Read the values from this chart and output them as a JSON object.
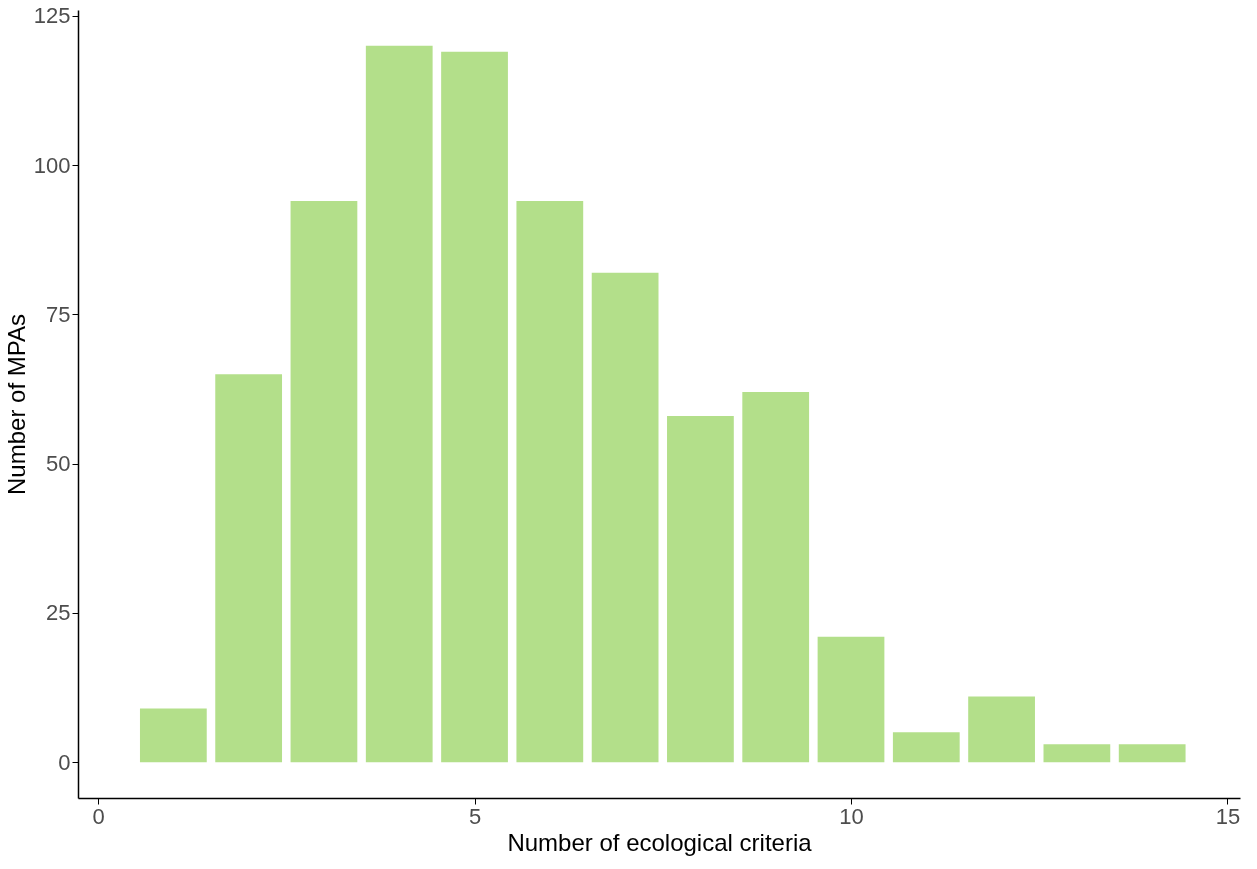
{
  "chart_data": {
    "type": "bar",
    "xlabel": "Number of ecological criteria",
    "ylabel": "Number of MPAs",
    "x": [
      1,
      2,
      3,
      4,
      5,
      6,
      7,
      8,
      9,
      10,
      11,
      12,
      13,
      14
    ],
    "values": [
      9,
      65,
      94,
      120,
      119,
      94,
      82,
      58,
      62,
      21,
      5,
      11,
      3,
      3
    ],
    "color": "#b3df8a",
    "xlim": [
      -0.2,
      15.1
    ],
    "xticks": [
      0,
      5,
      10,
      15
    ],
    "ylim": [
      -6,
      126
    ],
    "yticks": [
      0,
      25,
      50,
      75,
      100,
      125
    ],
    "grid": false
  }
}
